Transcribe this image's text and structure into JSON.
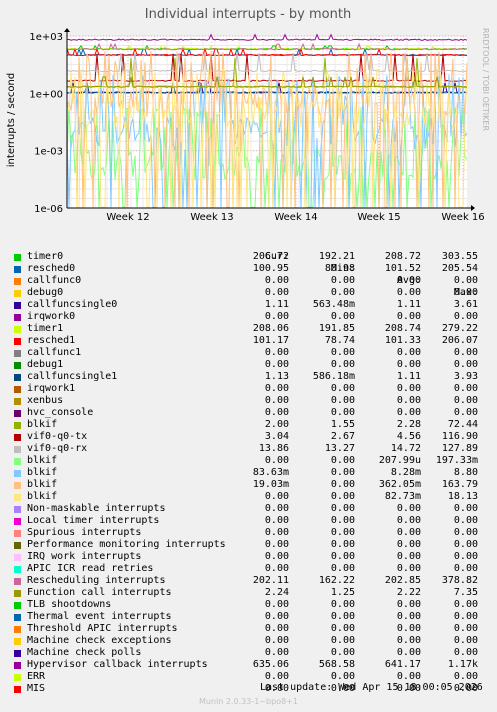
{
  "chart_data": {
    "type": "line",
    "title": "Individual interrupts - by month",
    "ylabel": "interrupts / second",
    "yscale": "log",
    "ylim": [
      "1e-06",
      "1e+03"
    ],
    "y_ticks": [
      "1e+03",
      "1e+00",
      "1e-03",
      "1e-06"
    ],
    "x_ticks": [
      "Week 12",
      "Week 13",
      "Week 14",
      "Week 15",
      "Week 16"
    ],
    "side_label": "RRDTOOL / TOBI OETIKER",
    "columns": [
      "Cur:",
      "Min:",
      "Avg:",
      "Max:"
    ],
    "series": [
      {
        "name": "timer0",
        "color": "#00cc00",
        "cur": "206.72",
        "min": "192.21",
        "avg": "208.72",
        "max": "303.55"
      },
      {
        "name": "resched0",
        "color": "#0066b3",
        "cur": "100.95",
        "min": "80.98",
        "avg": "101.52",
        "max": "205.54"
      },
      {
        "name": "callfunc0",
        "color": "#ff8000",
        "cur": "0.00",
        "min": "0.00",
        "avg": "0.00",
        "max": "0.00"
      },
      {
        "name": "debug0",
        "color": "#ffcc00",
        "cur": "0.00",
        "min": "0.00",
        "avg": "0.00",
        "max": "0.00"
      },
      {
        "name": "callfuncsingle0",
        "color": "#330099",
        "cur": "1.11",
        "min": "563.48m",
        "avg": "1.11",
        "max": "3.61"
      },
      {
        "name": "irqwork0",
        "color": "#990099",
        "cur": "0.00",
        "min": "0.00",
        "avg": "0.00",
        "max": "0.00"
      },
      {
        "name": "timer1",
        "color": "#ccff00",
        "cur": "208.06",
        "min": "191.85",
        "avg": "208.74",
        "max": "279.22"
      },
      {
        "name": "resched1",
        "color": "#ff0000",
        "cur": "101.17",
        "min": "78.74",
        "avg": "101.33",
        "max": "206.07"
      },
      {
        "name": "callfunc1",
        "color": "#808080",
        "cur": "0.00",
        "min": "0.00",
        "avg": "0.00",
        "max": "0.00"
      },
      {
        "name": "debug1",
        "color": "#008f00",
        "cur": "0.00",
        "min": "0.00",
        "avg": "0.00",
        "max": "0.00"
      },
      {
        "name": "callfuncsingle1",
        "color": "#00487d",
        "cur": "1.13",
        "min": "586.18m",
        "avg": "1.11",
        "max": "3.93"
      },
      {
        "name": "irqwork1",
        "color": "#b35a00",
        "cur": "0.00",
        "min": "0.00",
        "avg": "0.00",
        "max": "0.00"
      },
      {
        "name": "xenbus",
        "color": "#b38f00",
        "cur": "0.00",
        "min": "0.00",
        "avg": "0.00",
        "max": "0.00"
      },
      {
        "name": "hvc_console",
        "color": "#6b006b",
        "cur": "0.00",
        "min": "0.00",
        "avg": "0.00",
        "max": "0.00"
      },
      {
        "name": "blkif",
        "color": "#8fb300",
        "cur": "2.00",
        "min": "1.55",
        "avg": "2.28",
        "max": "72.44"
      },
      {
        "name": "vif0-q0-tx",
        "color": "#b30000",
        "cur": "3.04",
        "min": "2.67",
        "avg": "4.56",
        "max": "116.90"
      },
      {
        "name": "vif0-q0-rx",
        "color": "#bebebe",
        "cur": "13.86",
        "min": "13.27",
        "avg": "14.72",
        "max": "127.89"
      },
      {
        "name": "blkif",
        "color": "#80ff80",
        "cur": "0.00",
        "min": "0.00",
        "avg": "207.99u",
        "max": "197.33m"
      },
      {
        "name": "blkif",
        "color": "#80c9ff",
        "cur": "83.63m",
        "min": "0.00",
        "avg": "8.28m",
        "max": "8.80"
      },
      {
        "name": "blkif",
        "color": "#ffc080",
        "cur": "19.03m",
        "min": "0.00",
        "avg": "362.05m",
        "max": "163.79"
      },
      {
        "name": "blkif",
        "color": "#ffe680",
        "cur": "0.00",
        "min": "0.00",
        "avg": "82.73m",
        "max": "18.13"
      },
      {
        "name": "Non-maskable interrupts",
        "color": "#aa80ff",
        "cur": "0.00",
        "min": "0.00",
        "avg": "0.00",
        "max": "0.00"
      },
      {
        "name": "Local timer interrupts",
        "color": "#ee00cc",
        "cur": "0.00",
        "min": "0.00",
        "avg": "0.00",
        "max": "0.00"
      },
      {
        "name": "Spurious interrupts",
        "color": "#ff8080",
        "cur": "0.00",
        "min": "0.00",
        "avg": "0.00",
        "max": "0.00"
      },
      {
        "name": "Performance monitoring interrupts",
        "color": "#666600",
        "cur": "0.00",
        "min": "0.00",
        "avg": "0.00",
        "max": "0.00"
      },
      {
        "name": "IRQ work interrupts",
        "color": "#ffbfff",
        "cur": "0.00",
        "min": "0.00",
        "avg": "0.00",
        "max": "0.00"
      },
      {
        "name": "APIC ICR read retries",
        "color": "#00ffcc",
        "cur": "0.00",
        "min": "0.00",
        "avg": "0.00",
        "max": "0.00"
      },
      {
        "name": "Rescheduling interrupts",
        "color": "#cc6699",
        "cur": "202.11",
        "min": "162.22",
        "avg": "202.85",
        "max": "378.82"
      },
      {
        "name": "Function call interrupts",
        "color": "#999900",
        "cur": "2.24",
        "min": "1.25",
        "avg": "2.22",
        "max": "7.35"
      },
      {
        "name": "TLB shootdowns",
        "color": "#00cc00",
        "cur": "0.00",
        "min": "0.00",
        "avg": "0.00",
        "max": "0.00"
      },
      {
        "name": "Thermal event interrupts",
        "color": "#0066b3",
        "cur": "0.00",
        "min": "0.00",
        "avg": "0.00",
        "max": "0.00"
      },
      {
        "name": "Threshold APIC interrupts",
        "color": "#ff8000",
        "cur": "0.00",
        "min": "0.00",
        "avg": "0.00",
        "max": "0.00"
      },
      {
        "name": "Machine check exceptions",
        "color": "#ffcc00",
        "cur": "0.00",
        "min": "0.00",
        "avg": "0.00",
        "max": "0.00"
      },
      {
        "name": "Machine check polls",
        "color": "#330099",
        "cur": "0.00",
        "min": "0.00",
        "avg": "0.00",
        "max": "0.00"
      },
      {
        "name": "Hypervisor callback interrupts",
        "color": "#990099",
        "cur": "635.06",
        "min": "568.58",
        "avg": "641.17",
        "max": "1.17k"
      },
      {
        "name": "ERR",
        "color": "#ccff00",
        "cur": "0.00",
        "min": "0.00",
        "avg": "0.00",
        "max": "0.00"
      },
      {
        "name": "MIS",
        "color": "#ff0000",
        "cur": "0.00",
        "min": "0.00",
        "avg": "0.00",
        "max": "0.00"
      }
    ]
  },
  "last_update": "Last update: Wed Apr 15 18:00:05 2026",
  "footer": "Munin 2.0.33-1~bpo8+1"
}
